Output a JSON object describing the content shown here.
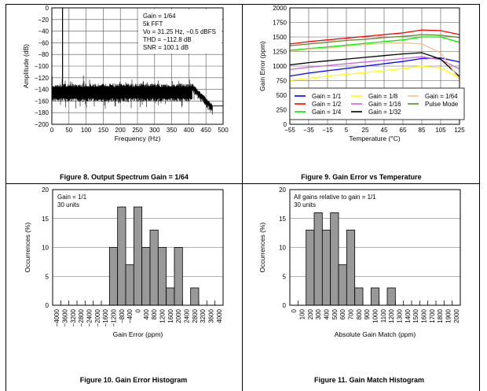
{
  "chart_data": [
    {
      "type": "line",
      "id": "fig8",
      "caption": "Figure 8. Output Spectrum Gain = 1/64",
      "xlabel": "Frequency (Hz)",
      "ylabel": "Amplitude (dB)",
      "xlim": [
        0,
        500
      ],
      "ylim": [
        -200,
        0
      ],
      "xticks": [
        0,
        50,
        100,
        150,
        200,
        250,
        300,
        350,
        400,
        450,
        500
      ],
      "yticks": [
        0,
        -20,
        -40,
        -60,
        -80,
        -100,
        -120,
        -140,
        -160,
        -180,
        -200
      ],
      "grid": true,
      "annotations": [
        "Gain = 1/64",
        "5k FFT",
        "Vo = 31.25 Hz, −0.5 dBFS",
        "THD = −112.8 dB",
        "SNR = 100.1 dB"
      ],
      "tone": {
        "freq": 31.25,
        "level": -0.5
      },
      "noise_floor": {
        "top": -130,
        "bottom": -155,
        "rolloff_start": 410,
        "rolloff_end": 470,
        "floor_after": -168
      }
    },
    {
      "type": "line",
      "id": "fig9",
      "caption": "Figure 9. Gain Error vs Temperature",
      "xlabel": "Temperature (°C)",
      "ylabel": "Gain Error (ppm)",
      "xlim": [
        -55,
        125
      ],
      "ylim": [
        0,
        2000
      ],
      "xticks": [
        -55,
        -35,
        -15,
        5,
        25,
        45,
        65,
        85,
        105,
        125
      ],
      "yticks": [
        0,
        250,
        500,
        750,
        1000,
        1250,
        1500,
        1750,
        2000
      ],
      "grid": true,
      "legend_position": "bottom-inside",
      "x": [
        -55,
        -35,
        -15,
        5,
        25,
        45,
        65,
        85,
        105,
        125
      ],
      "series": [
        {
          "name": "Gain = 1/1",
          "color": "#0000ff",
          "values": [
            830,
            880,
            920,
            960,
            1000,
            1040,
            1080,
            1130,
            1140,
            1070
          ]
        },
        {
          "name": "Gain = 1/2",
          "color": "#ff0000",
          "values": [
            1380,
            1420,
            1450,
            1480,
            1510,
            1540,
            1570,
            1620,
            1610,
            1540
          ]
        },
        {
          "name": "Gain = 1/4",
          "color": "#00ee00",
          "values": [
            1270,
            1300,
            1330,
            1360,
            1390,
            1420,
            1450,
            1500,
            1500,
            1410
          ]
        },
        {
          "name": "Gain = 1/8",
          "color": "#ffff00",
          "values": [
            750,
            790,
            830,
            860,
            890,
            920,
            960,
            1000,
            970,
            800
          ]
        },
        {
          "name": "Gain = 1/16",
          "color": "#cc66dd",
          "values": [
            940,
            980,
            1010,
            1040,
            1070,
            1100,
            1130,
            1160,
            1110,
            950
          ]
        },
        {
          "name": "Gain = 1/32",
          "color": "#000000",
          "values": [
            1020,
            1060,
            1090,
            1120,
            1150,
            1180,
            1210,
            1230,
            1120,
            820
          ]
        },
        {
          "name": "Gain = 1/64",
          "color": "#f5c090",
          "values": [
            1250,
            1290,
            1310,
            1340,
            1370,
            1390,
            1400,
            1380,
            1230,
            770
          ]
        },
        {
          "name": "Pulse Mode",
          "color": "#5a8a2a",
          "values": [
            1350,
            1380,
            1410,
            1440,
            1460,
            1490,
            1510,
            1540,
            1530,
            1490
          ]
        }
      ]
    },
    {
      "type": "bar",
      "id": "fig10",
      "caption": "Figure 10. Gain Error Histogram",
      "xlabel": "Gain Error (ppm)",
      "ylabel": "Occurrences (%)",
      "ylim": [
        0,
        20
      ],
      "yticks": [
        0,
        5,
        10,
        15,
        20
      ],
      "annotations": [
        "Gain = 1/1",
        "30 units"
      ],
      "categories": [
        "−4000",
        "−3600",
        "−3200",
        "−2800",
        "−2400",
        "−2000",
        "−1600",
        "−1200",
        "−800",
        "−400",
        "0",
        "400",
        "800",
        "1200",
        "1600",
        "2000",
        "2400",
        "2800",
        "3200",
        "3600",
        "4000"
      ],
      "values": [
        0,
        0,
        0,
        0,
        0,
        0,
        0,
        10,
        17,
        7,
        17,
        10,
        13,
        10,
        3,
        10,
        0,
        3,
        0,
        0,
        0
      ]
    },
    {
      "type": "bar",
      "id": "fig11",
      "caption": "Figure 11. Gain Match Histogram",
      "xlabel": "Absolute Gain Match (ppm)",
      "ylabel": "Occurrences (%)",
      "ylim": [
        0,
        20
      ],
      "yticks": [
        0,
        5,
        10,
        15,
        20
      ],
      "annotations": [
        "All gains relative to gain = 1/1",
        "30 units"
      ],
      "categories": [
        "0",
        "100",
        "200",
        "300",
        "400",
        "500",
        "600",
        "700",
        "800",
        "900",
        "1000",
        "1100",
        "1200",
        "1300",
        "1400",
        "1500",
        "1600",
        "1700",
        "1800",
        "1900",
        "2000"
      ],
      "values": [
        0,
        0,
        13,
        16,
        13,
        16,
        7,
        13,
        3,
        0,
        3,
        0,
        3,
        0,
        0,
        0,
        0,
        0,
        0,
        0,
        0
      ]
    }
  ]
}
